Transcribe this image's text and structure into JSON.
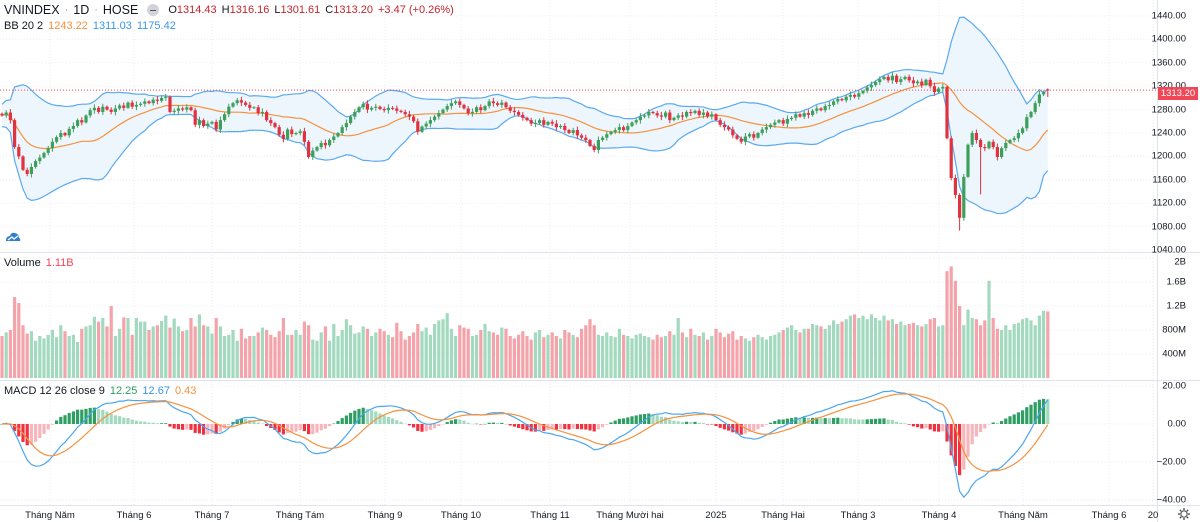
{
  "header": {
    "symbol": "VNINDEX",
    "interval": "1D",
    "exchange": "HOSE",
    "sep": "·",
    "o_label": "O",
    "o": "1314.43",
    "h_label": "H",
    "h": "1316.16",
    "l_label": "L",
    "l": "1301.61",
    "c_label": "C",
    "c": "1313.20",
    "change": "+3.47 (+0.26%)"
  },
  "bb_legend": {
    "name": "BB 20 2",
    "basis": "1243.22",
    "upper": "1311.03",
    "lower": "1175.42"
  },
  "volume_legend": {
    "name": "Volume",
    "value": "1.11B"
  },
  "macd_legend": {
    "name": "MACD 12 26 close 9",
    "hist": "12.25",
    "macd": "12.67",
    "signal": "0.43"
  },
  "price_tag": "1313.20",
  "colors": {
    "up": "#3e9f5a",
    "down": "#e0323f",
    "vol_up": "#a3d9bf",
    "vol_down": "#f5a3aa",
    "bb_band": "#5aa9f0",
    "bb_basis": "#f7913d",
    "bb_fill": "#eaf4fd",
    "macd": "#4ba6f0",
    "signal": "#f7913d",
    "hist_up_strong": "#2f9e63",
    "hist_up_weak": "#a3d9bf",
    "hist_down_strong": "#f0313f",
    "hist_down_weak": "#f7b6bc",
    "price_line": "#f04656"
  },
  "axes": {
    "price_ticks": [
      "1440.00",
      "1400.00",
      "1360.00",
      "1320.00",
      "1280.00",
      "1240.00",
      "1200.00",
      "1160.00",
      "1120.00",
      "1080.00",
      "1040.00"
    ],
    "volume_ticks": [
      "2B",
      "1.6B",
      "1.2B",
      "800M",
      "400M"
    ],
    "macd_ticks": [
      "20.00",
      "0.00",
      "−20.00",
      "−40.00"
    ],
    "time_labels": [
      "Tháng Năm",
      "Tháng 6",
      "Tháng 7",
      "Tháng Tám",
      "Tháng 9",
      "Tháng 10",
      "Tháng 11",
      "Tháng Mười hai",
      "2025",
      "Tháng Hai",
      "Tháng 3",
      "Tháng 4",
      "Tháng Năm",
      "Tháng 6",
      "20"
    ]
  },
  "chart_data": {
    "type": "candlestick",
    "symbol": "VNINDEX",
    "interval": "1D",
    "price_range": [
      1040,
      1440
    ],
    "last_ohlc": [
      1314.43,
      1316.16,
      1301.61,
      1313.2
    ],
    "indicators": [
      "BB 20 2",
      "Volume",
      "MACD 12 26 close 9"
    ],
    "grid": true,
    "close": [
      1270,
      1275,
      1262,
      1216,
      1200,
      1177,
      1170,
      1182,
      1192,
      1198,
      1206,
      1214,
      1225,
      1233,
      1240,
      1236,
      1247,
      1252,
      1262,
      1258,
      1270,
      1279,
      1283,
      1276,
      1285,
      1280,
      1276,
      1282,
      1287,
      1283,
      1292,
      1285,
      1288,
      1290,
      1294,
      1291,
      1297,
      1295,
      1300,
      1302,
      1276,
      1278,
      1282,
      1280,
      1284,
      1279,
      1254,
      1262,
      1252,
      1256,
      1259,
      1246,
      1262,
      1272,
      1285,
      1291,
      1296,
      1292,
      1288,
      1283,
      1284,
      1274,
      1276,
      1262,
      1257,
      1250,
      1237,
      1230,
      1246,
      1238,
      1240,
      1243,
      1225,
      1199,
      1210,
      1216,
      1223,
      1219,
      1228,
      1234,
      1240,
      1250,
      1257,
      1268,
      1276,
      1284,
      1290,
      1280,
      1283,
      1285,
      1281,
      1279,
      1283,
      1282,
      1278,
      1276,
      1272,
      1268,
      1260,
      1242,
      1251,
      1256,
      1262,
      1268,
      1274,
      1280,
      1286,
      1291,
      1294,
      1288,
      1282,
      1274,
      1276,
      1284,
      1279,
      1286,
      1294,
      1291,
      1288,
      1292,
      1284,
      1278,
      1276,
      1271,
      1266,
      1262,
      1256,
      1257,
      1262,
      1254,
      1259,
      1256,
      1250,
      1252,
      1245,
      1240,
      1245,
      1236,
      1232,
      1228,
      1218,
      1211,
      1228,
      1232,
      1238,
      1242,
      1245,
      1250,
      1245,
      1252,
      1258,
      1262,
      1268,
      1270,
      1276,
      1274,
      1270,
      1268,
      1275,
      1262,
      1266,
      1270,
      1268,
      1276,
      1274,
      1278,
      1271,
      1275,
      1268,
      1272,
      1262,
      1254,
      1250,
      1246,
      1236,
      1230,
      1225,
      1234,
      1238,
      1232,
      1240,
      1246,
      1250,
      1254,
      1258,
      1262,
      1256,
      1264,
      1266,
      1272,
      1268,
      1274,
      1271,
      1278,
      1282,
      1279,
      1286,
      1288,
      1294,
      1298,
      1296,
      1302,
      1305,
      1302,
      1308,
      1312,
      1318,
      1322,
      1327,
      1332,
      1336,
      1330,
      1338,
      1327,
      1332,
      1336,
      1330,
      1325,
      1328,
      1322,
      1331,
      1320,
      1310,
      1316,
      1319,
      1231,
      1163,
      1134,
      1095,
      1165,
      1220,
      1240,
      1228,
      1216,
      1214,
      1225,
      1216,
      1199,
      1214,
      1223,
      1228,
      1231,
      1240,
      1248,
      1267,
      1276,
      1291,
      1306,
      1309.73,
      1313.2
    ],
    "volume_millions": [
      700,
      760,
      800,
      1350,
      1250,
      880,
      740,
      780,
      620,
      700,
      660,
      720,
      800,
      680,
      880,
      780,
      700,
      720,
      600,
      820,
      860,
      880,
      1020,
      940,
      1000,
      860,
      1200,
      700,
      820,
      1010,
      1000,
      720,
      1000,
      940,
      940,
      800,
      860,
      880,
      950,
      1040,
      840,
      990,
      860,
      780,
      800,
      1000,
      860,
      1060,
      880,
      860,
      740,
      1000,
      860,
      700,
      720,
      800,
      620,
      820,
      660,
      700,
      700,
      760,
      840,
      800,
      720,
      680,
      780,
      1000,
      720,
      720,
      800,
      720,
      940,
      880,
      640,
      620,
      760,
      860,
      620,
      900,
      700,
      800,
      980,
      880,
      740,
      760,
      860,
      820,
      700,
      760,
      820,
      780,
      720,
      680,
      920,
      780,
      640,
      700,
      760,
      900,
      780,
      840,
      720,
      900,
      960,
      980,
      1080,
      820,
      700,
      880,
      840,
      820,
      700,
      720,
      800,
      900,
      780,
      760,
      720,
      840,
      820,
      700,
      660,
      720,
      780,
      700,
      640,
      760,
      800,
      680,
      720,
      760,
      700,
      660,
      800,
      760,
      720,
      680,
      820,
      880,
      980,
      880,
      720,
      700,
      760,
      700,
      680,
      820,
      720,
      700,
      660,
      720,
      740,
      700,
      680,
      640,
      720,
      680,
      700,
      780,
      720,
      1000,
      760,
      680,
      820,
      720,
      700,
      760,
      640,
      700,
      820,
      760,
      680,
      740,
      780,
      640,
      700,
      660,
      620,
      680,
      720,
      680,
      640,
      700,
      720,
      760,
      800,
      840,
      880,
      800,
      760,
      820,
      820,
      900,
      880,
      860,
      820,
      880,
      960,
      900,
      940,
      980,
      1040,
      1060,
      1000,
      1040,
      980,
      1060,
      1000,
      960,
      1040,
      960,
      980,
      900,
      940,
      880,
      900,
      920,
      880,
      860,
      900,
      980,
      1000,
      860,
      880,
      1780,
      1860,
      1620,
      1200,
      880,
      1140,
      1000,
      980,
      880,
      960,
      1620,
      1000,
      820,
      800,
      880,
      800,
      900,
      920,
      980,
      1000,
      960,
      880,
      1040,
      1120,
      1110
    ]
  }
}
